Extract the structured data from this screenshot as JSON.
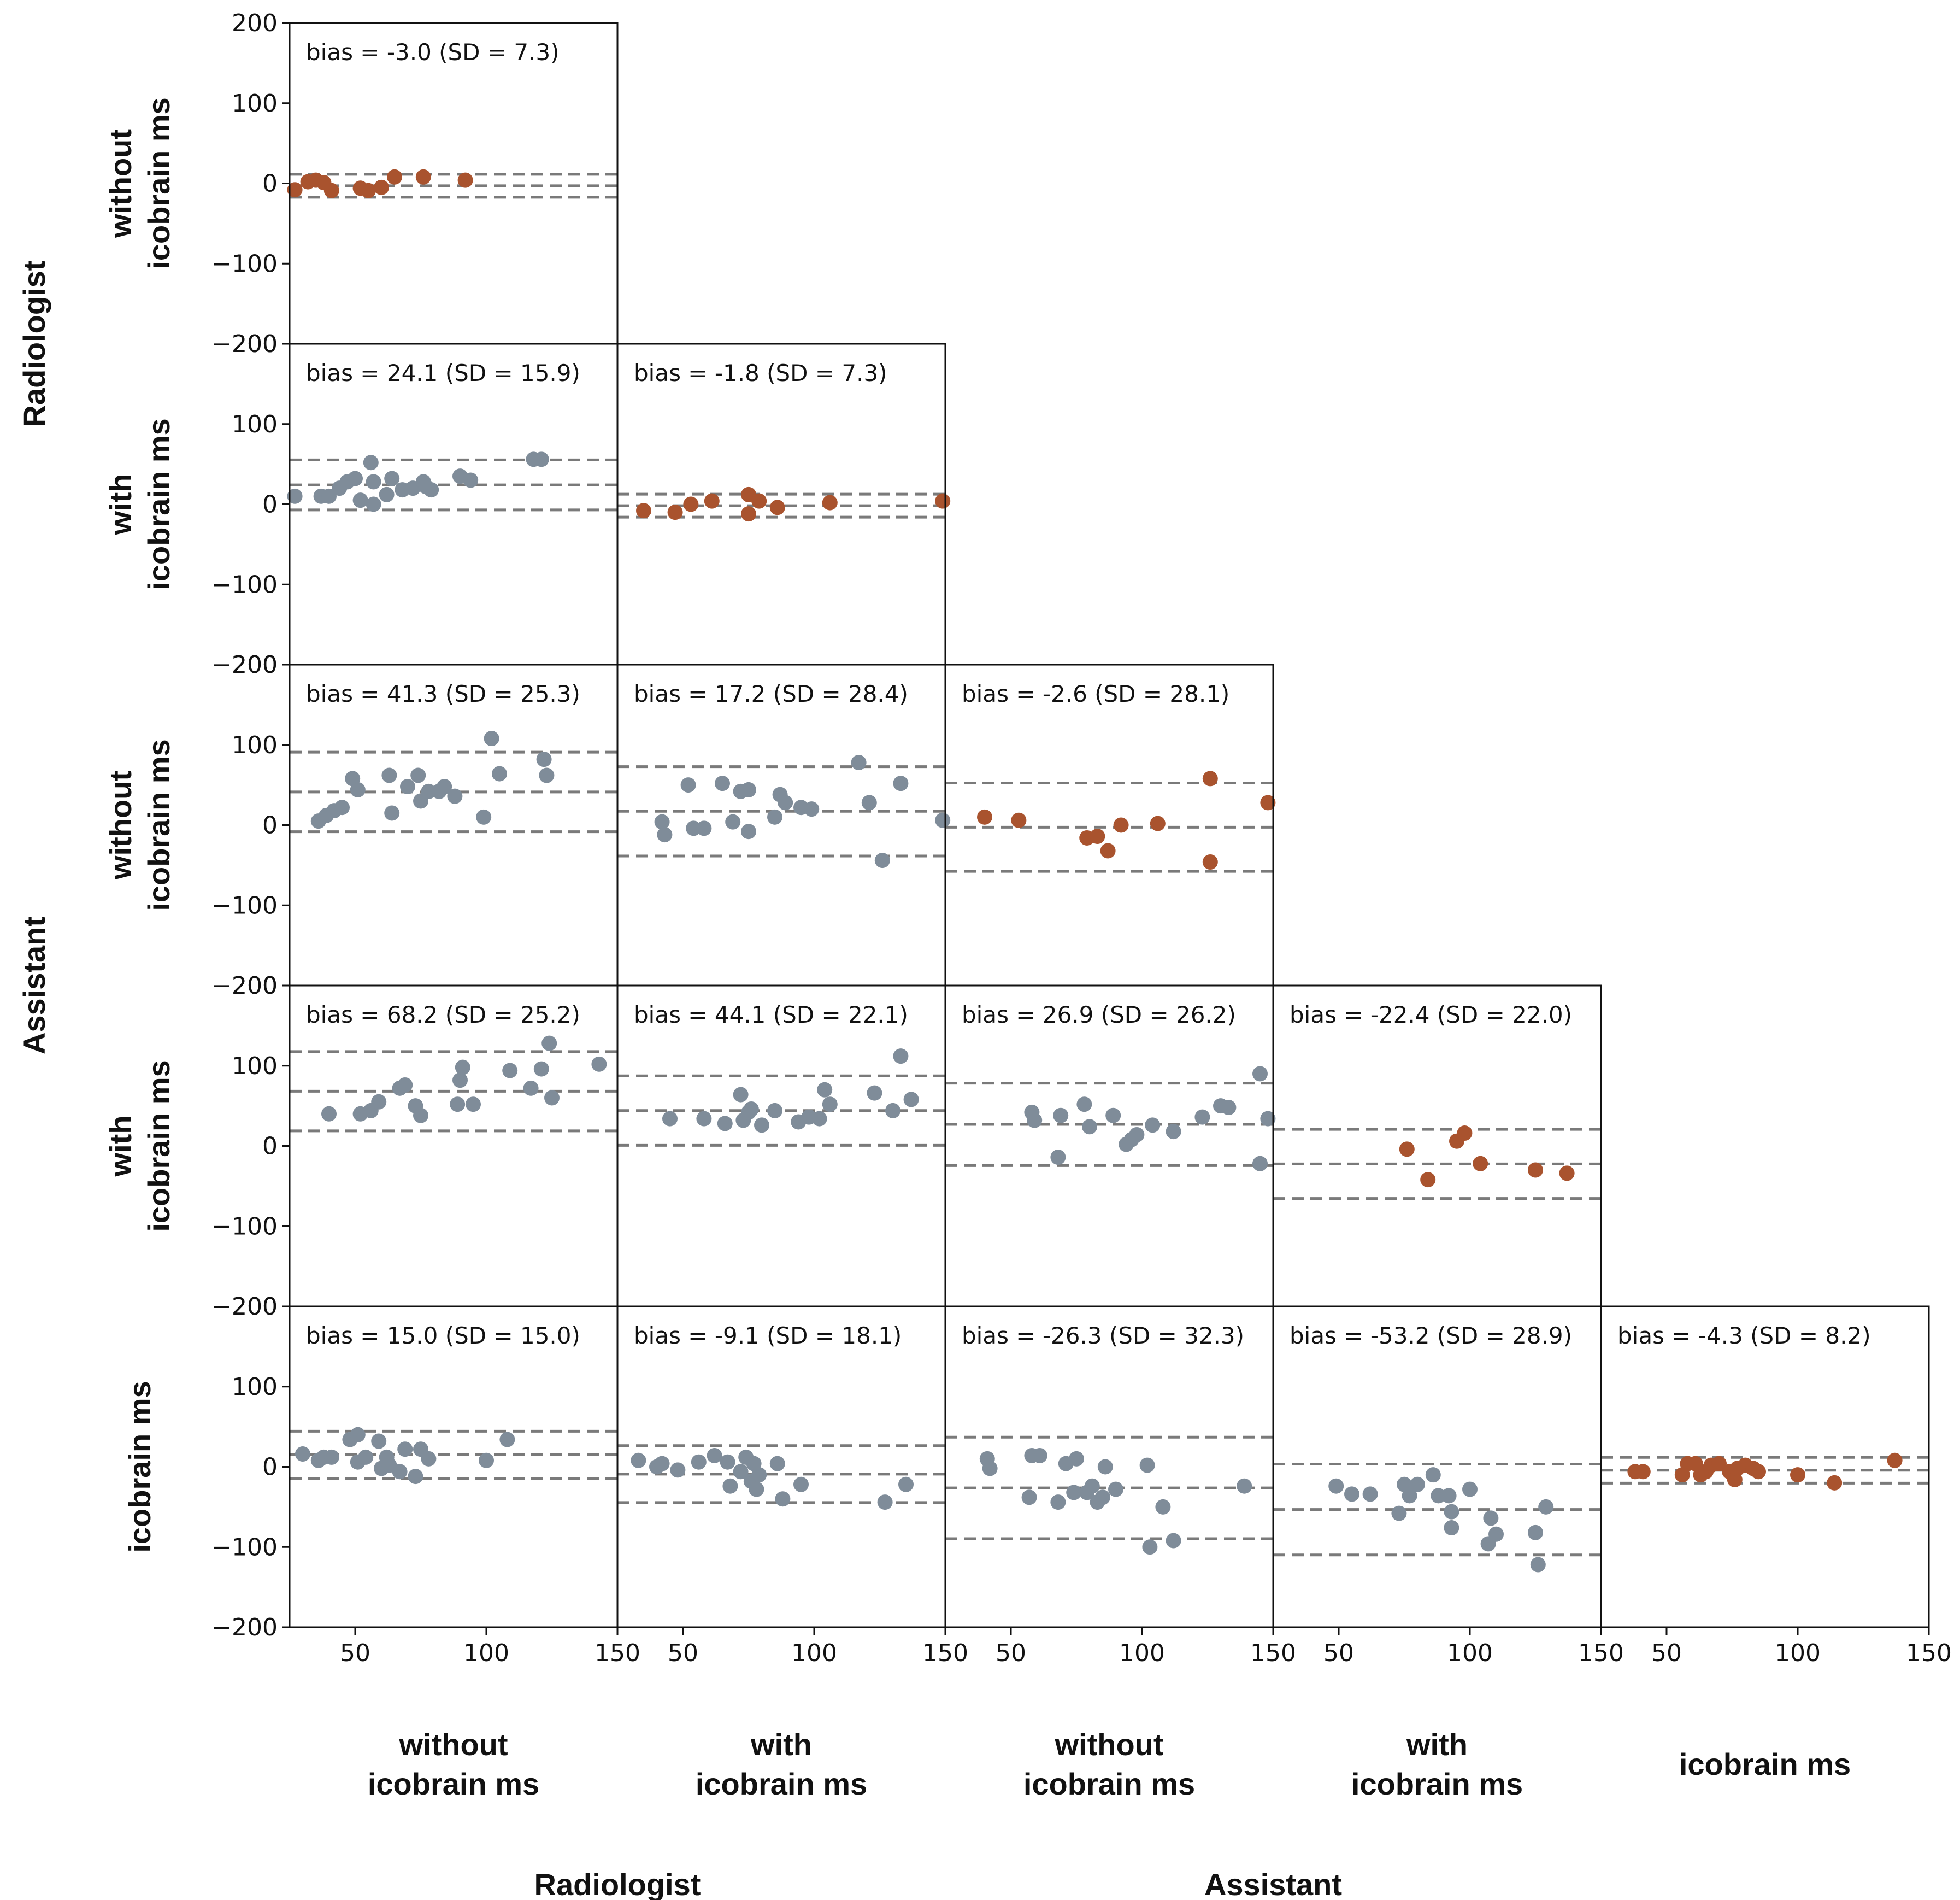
{
  "chart_data": {
    "type": "scatter",
    "description_axes": {
      "x_range": [
        25,
        150
      ],
      "y_range": [
        -200,
        200
      ],
      "x_ticks": [
        50,
        100,
        150
      ],
      "y_ticks": [
        200,
        100,
        0,
        -100,
        -200
      ],
      "y_tick_labels": [
        "200",
        "100",
        "0",
        "−100",
        "−200"
      ],
      "x_tick_labels": [
        "50",
        "100",
        "150"
      ]
    },
    "colors": {
      "same_method": "#a9532e",
      "cross_method": "#7f8c99",
      "ref_line": "#7a7a7a"
    },
    "row_labels": [
      {
        "lines": [
          "without",
          "icobrain ms"
        ]
      },
      {
        "lines": [
          "with",
          "icobrain ms"
        ]
      },
      {
        "lines": [
          "without",
          "icobrain ms"
        ]
      },
      {
        "lines": [
          "with",
          "icobrain ms"
        ]
      },
      {
        "lines": [
          "icobrain ms"
        ]
      }
    ],
    "col_labels": [
      {
        "lines": [
          "without",
          "icobrain ms"
        ]
      },
      {
        "lines": [
          "with",
          "icobrain ms"
        ]
      },
      {
        "lines": [
          "without",
          "icobrain ms"
        ]
      },
      {
        "lines": [
          "with",
          "icobrain ms"
        ]
      },
      {
        "lines": [
          "icobrain ms"
        ]
      }
    ],
    "row_groups": [
      {
        "label": "Radiologist",
        "rows": [
          0,
          1
        ]
      },
      {
        "label": "Assistant",
        "rows": [
          2,
          3
        ]
      }
    ],
    "col_groups": [
      {
        "label": "Radiologist",
        "cols": [
          0,
          1
        ]
      },
      {
        "label": "Assistant",
        "cols": [
          2,
          3
        ]
      }
    ],
    "panels": [
      {
        "row": 0,
        "col": 0,
        "bias_label": "bias = -3.0 (SD = 7.3)",
        "bias": -3.0,
        "sd": 7.3,
        "color": "same_method",
        "points": [
          [
            27,
            -8
          ],
          [
            32,
            2
          ],
          [
            35,
            4
          ],
          [
            38,
            1
          ],
          [
            41,
            -9
          ],
          [
            52,
            -6
          ],
          [
            55,
            -9
          ],
          [
            60,
            -5
          ],
          [
            65,
            8
          ],
          [
            76,
            8
          ],
          [
            92,
            4
          ]
        ]
      },
      {
        "row": 1,
        "col": 0,
        "bias_label": "bias = 24.1 (SD = 15.9)",
        "bias": 24.1,
        "sd": 15.9,
        "color": "cross_method",
        "points": [
          [
            27,
            10
          ],
          [
            37,
            10
          ],
          [
            40,
            10
          ],
          [
            44,
            20
          ],
          [
            47,
            28
          ],
          [
            50,
            32
          ],
          [
            52,
            5
          ],
          [
            56,
            52
          ],
          [
            57,
            28
          ],
          [
            57,
            0
          ],
          [
            62,
            12
          ],
          [
            64,
            32
          ],
          [
            68,
            18
          ],
          [
            72,
            20
          ],
          [
            76,
            28
          ],
          [
            77,
            22
          ],
          [
            79,
            18
          ],
          [
            90,
            35
          ],
          [
            94,
            30
          ],
          [
            118,
            56
          ],
          [
            121,
            56
          ]
        ]
      },
      {
        "row": 1,
        "col": 1,
        "bias_label": "bias = -1.8 (SD = 7.3)",
        "bias": -1.8,
        "sd": 7.3,
        "color": "same_method",
        "points": [
          [
            35,
            -8
          ],
          [
            47,
            -10
          ],
          [
            53,
            0
          ],
          [
            61,
            4
          ],
          [
            75,
            12
          ],
          [
            75,
            -12
          ],
          [
            79,
            4
          ],
          [
            86,
            -4
          ],
          [
            106,
            2
          ],
          [
            149,
            4
          ]
        ]
      },
      {
        "row": 2,
        "col": 0,
        "bias_label": "bias = 41.3 (SD = 25.3)",
        "bias": 41.3,
        "sd": 25.3,
        "color": "cross_method",
        "points": [
          [
            36,
            5
          ],
          [
            39,
            12
          ],
          [
            42,
            18
          ],
          [
            45,
            22
          ],
          [
            49,
            58
          ],
          [
            51,
            44
          ],
          [
            63,
            62
          ],
          [
            64,
            15
          ],
          [
            70,
            48
          ],
          [
            74,
            62
          ],
          [
            75,
            30
          ],
          [
            78,
            42
          ],
          [
            82,
            42
          ],
          [
            84,
            48
          ],
          [
            88,
            36
          ],
          [
            99,
            10
          ],
          [
            102,
            108
          ],
          [
            105,
            64
          ],
          [
            122,
            82
          ],
          [
            123,
            62
          ]
        ]
      },
      {
        "row": 2,
        "col": 1,
        "bias_label": "bias = 17.2 (SD = 28.4)",
        "bias": 17.2,
        "sd": 28.4,
        "color": "cross_method",
        "points": [
          [
            42,
            4
          ],
          [
            43,
            -12
          ],
          [
            52,
            50
          ],
          [
            54,
            -4
          ],
          [
            58,
            -4
          ],
          [
            65,
            52
          ],
          [
            69,
            4
          ],
          [
            72,
            42
          ],
          [
            75,
            44
          ],
          [
            75,
            -8
          ],
          [
            85,
            10
          ],
          [
            87,
            38
          ],
          [
            89,
            28
          ],
          [
            95,
            22
          ],
          [
            99,
            20
          ],
          [
            117,
            78
          ],
          [
            121,
            28
          ],
          [
            126,
            -44
          ],
          [
            133,
            52
          ],
          [
            149,
            6
          ]
        ]
      },
      {
        "row": 2,
        "col": 2,
        "bias_label": "bias = -2.6 (SD = 28.1)",
        "bias": -2.6,
        "sd": 28.1,
        "color": "same_method",
        "points": [
          [
            40,
            10
          ],
          [
            53,
            6
          ],
          [
            79,
            -16
          ],
          [
            83,
            -14
          ],
          [
            87,
            -32
          ],
          [
            92,
            0
          ],
          [
            106,
            2
          ],
          [
            126,
            58
          ],
          [
            126,
            -46
          ],
          [
            148,
            28
          ]
        ]
      },
      {
        "row": 3,
        "col": 0,
        "bias_label": "bias = 68.2 (SD = 25.2)",
        "bias": 68.2,
        "sd": 25.2,
        "color": "cross_method",
        "points": [
          [
            40,
            40
          ],
          [
            52,
            40
          ],
          [
            56,
            44
          ],
          [
            59,
            55
          ],
          [
            67,
            72
          ],
          [
            69,
            76
          ],
          [
            73,
            50
          ],
          [
            75,
            38
          ],
          [
            89,
            52
          ],
          [
            90,
            82
          ],
          [
            91,
            98
          ],
          [
            95,
            52
          ],
          [
            109,
            94
          ],
          [
            117,
            72
          ],
          [
            121,
            96
          ],
          [
            124,
            128
          ],
          [
            125,
            60
          ],
          [
            143,
            102
          ]
        ]
      },
      {
        "row": 3,
        "col": 1,
        "bias_label": "bias = 44.1 (SD = 22.1)",
        "bias": 44.1,
        "sd": 22.1,
        "color": "cross_method",
        "points": [
          [
            45,
            34
          ],
          [
            58,
            34
          ],
          [
            66,
            28
          ],
          [
            72,
            64
          ],
          [
            73,
            32
          ],
          [
            75,
            42
          ],
          [
            76,
            46
          ],
          [
            80,
            26
          ],
          [
            85,
            44
          ],
          [
            94,
            30
          ],
          [
            98,
            36
          ],
          [
            102,
            34
          ],
          [
            104,
            70
          ],
          [
            106,
            52
          ],
          [
            123,
            66
          ],
          [
            130,
            44
          ],
          [
            133,
            112
          ],
          [
            137,
            58
          ]
        ]
      },
      {
        "row": 3,
        "col": 2,
        "bias_label": "bias = 26.9 (SD = 26.2)",
        "bias": 26.9,
        "sd": 26.2,
        "color": "cross_method",
        "points": [
          [
            58,
            42
          ],
          [
            59,
            32
          ],
          [
            68,
            -14
          ],
          [
            69,
            38
          ],
          [
            78,
            52
          ],
          [
            80,
            24
          ],
          [
            89,
            38
          ],
          [
            94,
            2
          ],
          [
            96,
            8
          ],
          [
            98,
            14
          ],
          [
            104,
            26
          ],
          [
            112,
            18
          ],
          [
            123,
            36
          ],
          [
            130,
            50
          ],
          [
            133,
            48
          ],
          [
            145,
            -22
          ],
          [
            145,
            90
          ],
          [
            148,
            34
          ]
        ]
      },
      {
        "row": 3,
        "col": 3,
        "bias_label": "bias = -22.4 (SD = 22.0)",
        "bias": -22.4,
        "sd": 22.0,
        "color": "same_method",
        "points": [
          [
            76,
            -4
          ],
          [
            84,
            -42
          ],
          [
            95,
            6
          ],
          [
            98,
            16
          ],
          [
            104,
            -22
          ],
          [
            125,
            -30
          ],
          [
            137,
            -34
          ]
        ]
      },
      {
        "row": 4,
        "col": 0,
        "bias_label": "bias = 15.0 (SD = 15.0)",
        "bias": 15.0,
        "sd": 15.0,
        "color": "cross_method",
        "points": [
          [
            30,
            16
          ],
          [
            36,
            8
          ],
          [
            38,
            12
          ],
          [
            41,
            12
          ],
          [
            48,
            34
          ],
          [
            51,
            40
          ],
          [
            51,
            6
          ],
          [
            54,
            12
          ],
          [
            59,
            32
          ],
          [
            60,
            -2
          ],
          [
            62,
            12
          ],
          [
            63,
            2
          ],
          [
            67,
            -6
          ],
          [
            69,
            22
          ],
          [
            73,
            -12
          ],
          [
            75,
            22
          ],
          [
            78,
            10
          ],
          [
            100,
            8
          ],
          [
            108,
            34
          ]
        ]
      },
      {
        "row": 4,
        "col": 1,
        "bias_label": "bias = -9.1 (SD = 18.1)",
        "bias": -9.1,
        "sd": 18.1,
        "color": "cross_method",
        "points": [
          [
            33,
            8
          ],
          [
            40,
            0
          ],
          [
            42,
            4
          ],
          [
            48,
            -4
          ],
          [
            56,
            6
          ],
          [
            62,
            14
          ],
          [
            67,
            6
          ],
          [
            68,
            -24
          ],
          [
            72,
            -6
          ],
          [
            74,
            12
          ],
          [
            76,
            -18
          ],
          [
            77,
            4
          ],
          [
            78,
            -28
          ],
          [
            79,
            -10
          ],
          [
            86,
            4
          ],
          [
            88,
            -40
          ],
          [
            95,
            -22
          ],
          [
            127,
            -44
          ],
          [
            135,
            -22
          ]
        ]
      },
      {
        "row": 4,
        "col": 2,
        "bias_label": "bias = -26.3 (SD = 32.3)",
        "bias": -26.3,
        "sd": 32.3,
        "color": "cross_method",
        "points": [
          [
            41,
            10
          ],
          [
            42,
            -2
          ],
          [
            57,
            -38
          ],
          [
            58,
            14
          ],
          [
            61,
            14
          ],
          [
            68,
            -44
          ],
          [
            71,
            4
          ],
          [
            74,
            -32
          ],
          [
            75,
            10
          ],
          [
            79,
            -32
          ],
          [
            81,
            -24
          ],
          [
            83,
            -44
          ],
          [
            85,
            -38
          ],
          [
            86,
            0
          ],
          [
            90,
            -28
          ],
          [
            102,
            2
          ],
          [
            103,
            -100
          ],
          [
            108,
            -50
          ],
          [
            112,
            -92
          ],
          [
            139,
            -24
          ]
        ]
      },
      {
        "row": 4,
        "col": 3,
        "bias_label": "bias = -53.2 (SD = 28.9)",
        "bias": -53.2,
        "sd": 28.9,
        "color": "cross_method",
        "points": [
          [
            49,
            -24
          ],
          [
            55,
            -34
          ],
          [
            62,
            -34
          ],
          [
            73,
            -58
          ],
          [
            75,
            -22
          ],
          [
            77,
            -36
          ],
          [
            80,
            -22
          ],
          [
            86,
            -10
          ],
          [
            88,
            -36
          ],
          [
            92,
            -36
          ],
          [
            93,
            -56
          ],
          [
            93,
            -76
          ],
          [
            100,
            -28
          ],
          [
            107,
            -96
          ],
          [
            108,
            -64
          ],
          [
            110,
            -84
          ],
          [
            125,
            -82
          ],
          [
            126,
            -122
          ],
          [
            129,
            -50
          ]
        ]
      },
      {
        "row": 4,
        "col": 4,
        "bias_label": "bias = -4.3 (SD = 8.2)",
        "bias": -4.3,
        "sd": 8.2,
        "color": "same_method",
        "points": [
          [
            38,
            -6
          ],
          [
            41,
            -6
          ],
          [
            56,
            -10
          ],
          [
            58,
            4
          ],
          [
            61,
            4
          ],
          [
            63,
            -10
          ],
          [
            65,
            -6
          ],
          [
            67,
            2
          ],
          [
            70,
            4
          ],
          [
            74,
            -6
          ],
          [
            76,
            -16
          ],
          [
            77,
            -2
          ],
          [
            80,
            2
          ],
          [
            83,
            -2
          ],
          [
            85,
            -6
          ],
          [
            100,
            -10
          ],
          [
            114,
            -20
          ],
          [
            137,
            8
          ]
        ]
      }
    ]
  }
}
